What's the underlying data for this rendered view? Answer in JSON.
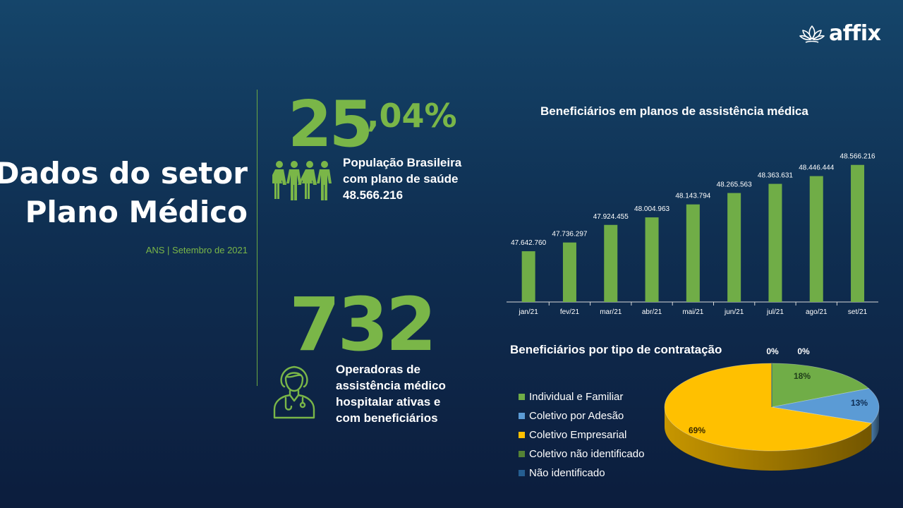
{
  "brand": {
    "name": "affix"
  },
  "header": {
    "title_line1": "Dados do setor",
    "title_line2": "Plano Médico",
    "subtitle": "ANS | Setembro de 2021"
  },
  "stat1": {
    "percent_int": "25",
    "percent_dec": ",04%",
    "line1": "População Brasileira",
    "line2": "com plano de saúde",
    "line3": "48.566.216",
    "icon": "people-group-icon"
  },
  "stat2": {
    "number": "732",
    "line1": "Operadoras de",
    "line2": "assistência médico",
    "line3": "hospitalar ativas e",
    "line4": "com beneficiários",
    "icon": "doctor-icon"
  },
  "colors": {
    "accent_green": "#7ab648",
    "bar_green": "#70ad47",
    "pie_blue": "#5b9bd5",
    "pie_gold": "#ffc000",
    "pie_dark_green": "#548235",
    "pie_dark_blue": "#255e91"
  },
  "chart_data": [
    {
      "type": "bar",
      "title": "Beneficiários em planos de assistência médica",
      "categories": [
        "jan/21",
        "fev/21",
        "mar/21",
        "abr/21",
        "mai/21",
        "jun/21",
        "jul/21",
        "ago/21",
        "set/21"
      ],
      "values": [
        47642760,
        47736297,
        47924455,
        48004963,
        48143794,
        48265563,
        48363631,
        48446444,
        48566216
      ],
      "labels": [
        "47.642.760",
        "47.736.297",
        "47.924.455",
        "48.004.963",
        "48.143.794",
        "48.265.563",
        "48.363.631",
        "48.446.444",
        "48.566.216"
      ],
      "ylim": [
        47100000,
        48700000
      ],
      "grid": false,
      "show_y_axis": false
    },
    {
      "type": "pie",
      "title": "Beneficiários por tipo de contratação",
      "style": "3d",
      "labels": [
        "Individual e Familiar",
        "Coletivo por Adesão",
        "Coletivo Empresarial",
        "Coletivo não identificado",
        "Não identificado"
      ],
      "values": [
        18,
        13,
        69,
        0,
        0
      ],
      "value_labels": [
        "18%",
        "13%",
        "69%",
        "0%",
        "0%"
      ],
      "colors": [
        "#70ad47",
        "#5b9bd5",
        "#ffc000",
        "#548235",
        "#255e91"
      ],
      "legend": "left"
    }
  ]
}
